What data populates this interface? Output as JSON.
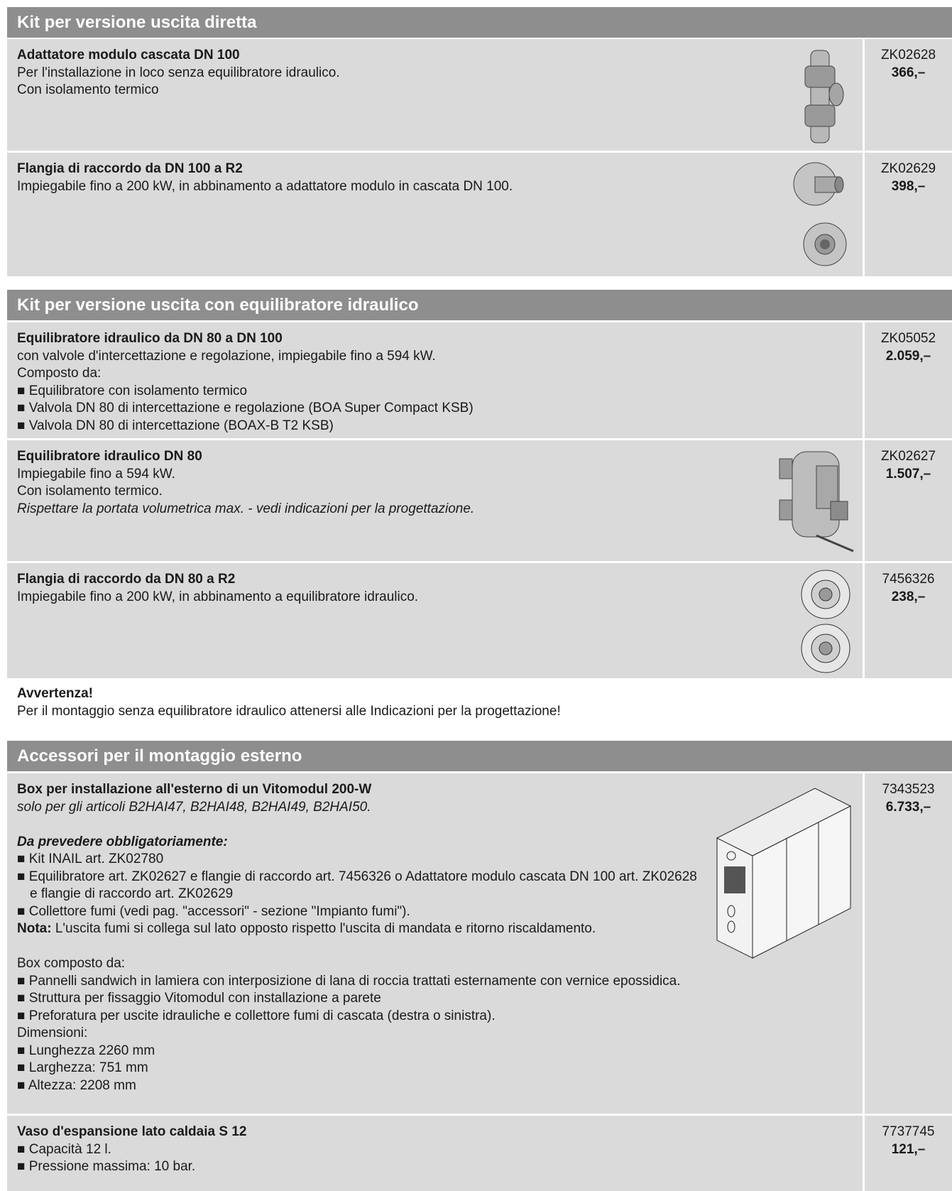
{
  "sections": [
    {
      "title": "Kit per versione uscita diretta",
      "items": [
        {
          "title": "Adattatore modulo cascata DN 100",
          "lines": [
            "Per l'installazione in loco senza equilibratore idraulico.",
            "Con isolamento termico"
          ],
          "code": "ZK02628",
          "price": "366,–"
        },
        {
          "title": "Flangia di raccordo da DN 100 a R2",
          "lines": [
            "Impiegabile fino a 200 kW, in abbinamento a adattatore modulo in cascata DN 100."
          ],
          "code": "ZK02629",
          "price": "398,–"
        }
      ]
    },
    {
      "title": "Kit per versione uscita con equilibratore idraulico",
      "items": [
        {
          "title": "Equilibratore idraulico da DN 80 a DN 100",
          "lines": [
            "con valvole d'intercettazione e regolazione, impiegabile fino a 594 kW.",
            "Composto da:",
            "■ Equilibratore con isolamento termico",
            "■ Valvola DN 80 di intercettazione e regolazione (BOA Super Compact KSB)",
            "■ Valvola DN 80 di intercettazione (BOAX-B T2 KSB)"
          ],
          "code": "ZK05052",
          "price": "2.059,–"
        },
        {
          "title": "Equilibratore idraulico DN 80",
          "lines": [
            "Impiegabile fino a 594 kW.",
            "Con isolamento termico.",
            "Rispettare la portata volumetrica max. - vedi indicazioni per la progettazione."
          ],
          "code": "ZK02627",
          "price": "1.507,–"
        },
        {
          "title": "Flangia di raccordo da DN 80 a R2",
          "lines": [
            "Impiegabile fino a 200 kW, in abbinamento a equilibratore idraulico."
          ],
          "code": "7456326",
          "price": "238,–"
        }
      ]
    },
    {
      "title": "Accessori per il montaggio esterno",
      "items": [
        {
          "title": "Box per installazione all'esterno di un Vitomodul 200-W",
          "lines": [
            "solo per gli articoli B2HAI47, B2HAI48, B2HAI49, B2HAI50.",
            "Da prevedere obbligatoriamente:",
            "■ Kit INAIL art. ZK02780",
            "■ Equilibratore art. ZK02627 e flangie di raccordo art. 7456326 o Adattatore modulo cascata DN 100 art. ZK02628 e flangie di raccordo art. ZK02629",
            "■ Collettore fumi (vedi pag. \"accessori\" - sezione \"Impianto fumi\")."
          ],
          "note": {
            "label": "Nota:",
            "text": " L'uscita fumi si collega sul lato opposto rispetto l'uscita di mandata e ritorno riscaldamento."
          },
          "composition": [
            "Box composto da:",
            "■ Pannelli sandwich in lamiera con interposizione di lana di roccia trattati esternamente con vernice epossidica.",
            "■ Struttura per fissaggio Vitomodul con installazione a parete",
            "■ Preforatura per uscite idrauliche e collettore fumi di cascata (destra o sinistra).",
            "Dimensioni:",
            "■ Lunghezza 2260 mm",
            "■ Larghezza: 751 mm",
            "■ Altezza: 2208 mm"
          ],
          "code": "7343523",
          "price": "6.733,–"
        },
        {
          "title": "Vaso d'espansione lato caldaia S 12",
          "lines": [
            "■ Capacità 12 l.",
            "■ Pressione massima: 10 bar."
          ],
          "code": "7737745",
          "price": "121,–"
        }
      ]
    }
  ],
  "notice": {
    "title": "Avvertenza!",
    "text": "Per il montaggio senza equilibratore idraulico attenersi alle Indicazioni per la progettazione!"
  }
}
